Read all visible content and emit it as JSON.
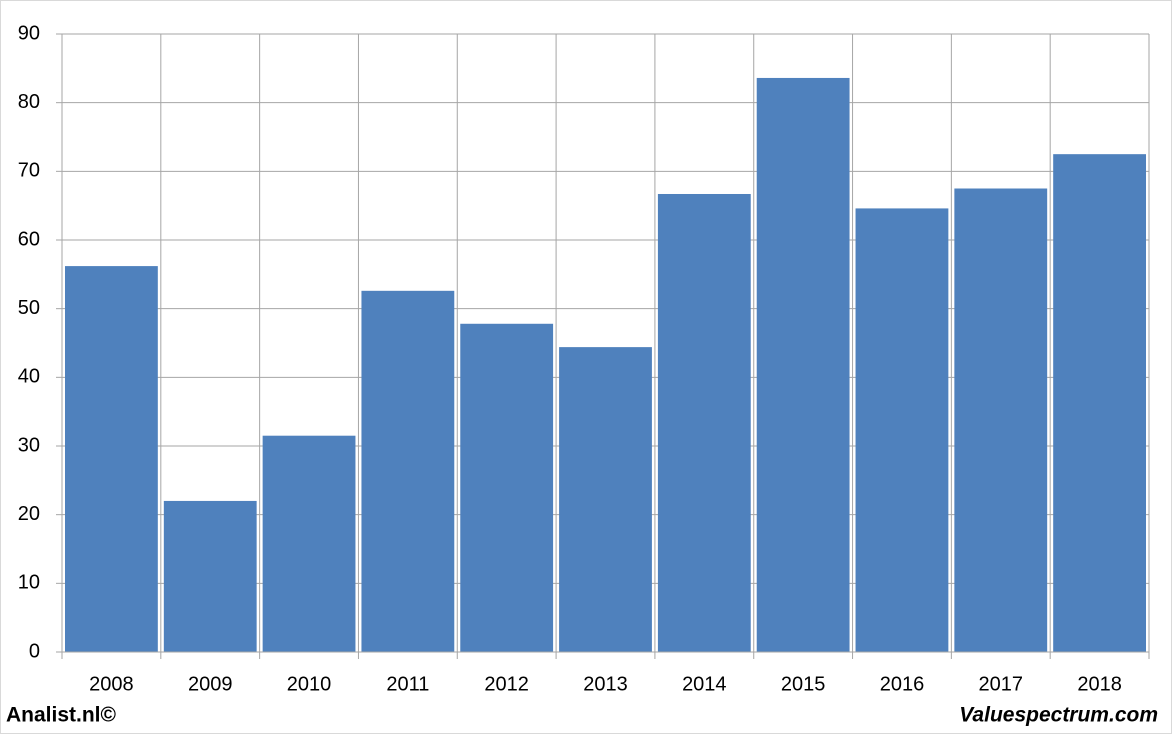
{
  "chart_data": {
    "type": "bar",
    "categories": [
      "2008",
      "2009",
      "2010",
      "2011",
      "2012",
      "2013",
      "2014",
      "2015",
      "2016",
      "2017",
      "2018"
    ],
    "values": [
      56.2,
      22,
      31.5,
      52.6,
      47.8,
      44.4,
      66.7,
      83.6,
      64.6,
      67.5,
      72.5
    ],
    "color": "#4f81bd",
    "ylim": [
      0,
      90
    ],
    "yticks": [
      0,
      10,
      20,
      30,
      40,
      50,
      60,
      70,
      80,
      90
    ],
    "grid": true,
    "annotations": [
      "Analist.nl©",
      "Valuespectrum.com"
    ]
  }
}
